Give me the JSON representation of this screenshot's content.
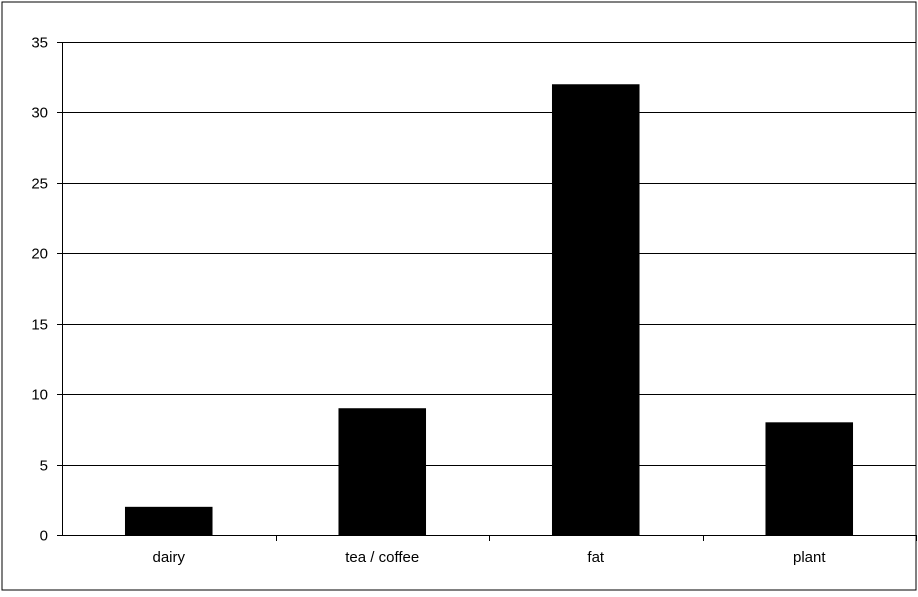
{
  "chart_data": {
    "type": "bar",
    "title": "",
    "xlabel": "",
    "ylabel": "",
    "categories": [
      "dairy",
      "tea / coffee",
      "fat",
      "plant"
    ],
    "values": [
      2,
      9,
      32,
      8
    ],
    "ylim": [
      0,
      35
    ],
    "yticks": [
      "0",
      "5",
      "10",
      "15",
      "20",
      "25",
      "30",
      "35"
    ],
    "grid": true,
    "legend": "none",
    "bar_color": "#000000",
    "grid_color": "#000000",
    "background": "#ffffff"
  }
}
